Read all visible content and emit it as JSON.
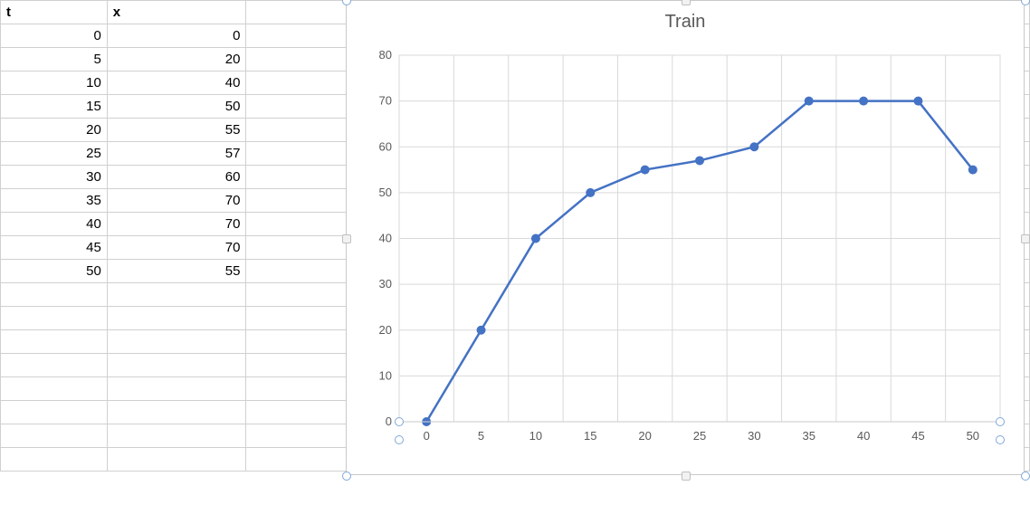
{
  "sheet": {
    "headers": {
      "col1": "t",
      "col2": "x"
    },
    "rows": [
      {
        "t": "0",
        "x": "0"
      },
      {
        "t": "5",
        "x": "20"
      },
      {
        "t": "10",
        "x": "40"
      },
      {
        "t": "15",
        "x": "50"
      },
      {
        "t": "20",
        "x": "55"
      },
      {
        "t": "25",
        "x": "57"
      },
      {
        "t": "30",
        "x": "60"
      },
      {
        "t": "35",
        "x": "70"
      },
      {
        "t": "40",
        "x": "70"
      },
      {
        "t": "45",
        "x": "70"
      },
      {
        "t": "50",
        "x": "55"
      }
    ],
    "blank_rows_after": 8,
    "extra_cols": 7,
    "grid_color": "#d0d0d0",
    "bg_color": "#ffffff"
  },
  "chart": {
    "type": "line",
    "title": "Train",
    "title_fontsize": 20,
    "title_color": "#595959",
    "categories": [
      "0",
      "5",
      "10",
      "15",
      "20",
      "25",
      "30",
      "35",
      "40",
      "45",
      "50"
    ],
    "values": [
      0,
      20,
      40,
      50,
      55,
      57,
      60,
      70,
      70,
      70,
      55
    ],
    "line_color": "#4472c4",
    "marker_color": "#4472c4",
    "marker_radius": 5,
    "line_width": 2.5,
    "y_axis": {
      "min": 0,
      "max": 80,
      "step": 10,
      "label_color": "#595959",
      "label_fontsize": 13
    },
    "x_axis": {
      "label_color": "#595959",
      "label_fontsize": 13
    },
    "grid_color": "#d9d9d9",
    "axis_color": "#bfbfbf",
    "plot_bg": "#ffffff",
    "selection_handle_color": "#7fa8d9",
    "selection_handle_bg": "#ffffff"
  }
}
